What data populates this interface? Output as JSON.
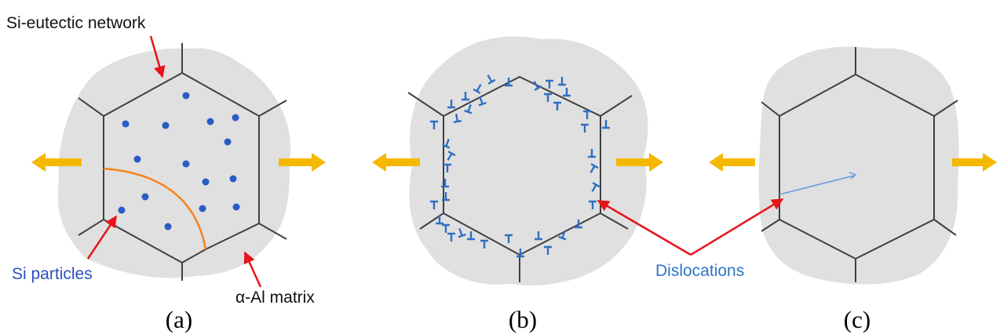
{
  "labels": {
    "network": "Si-eutectic network",
    "particles": "Si particles",
    "matrix": "α-Al matrix",
    "dislocations": "Dislocations"
  },
  "panels": [
    "(a)",
    "(b)",
    "(c)"
  ]
}
